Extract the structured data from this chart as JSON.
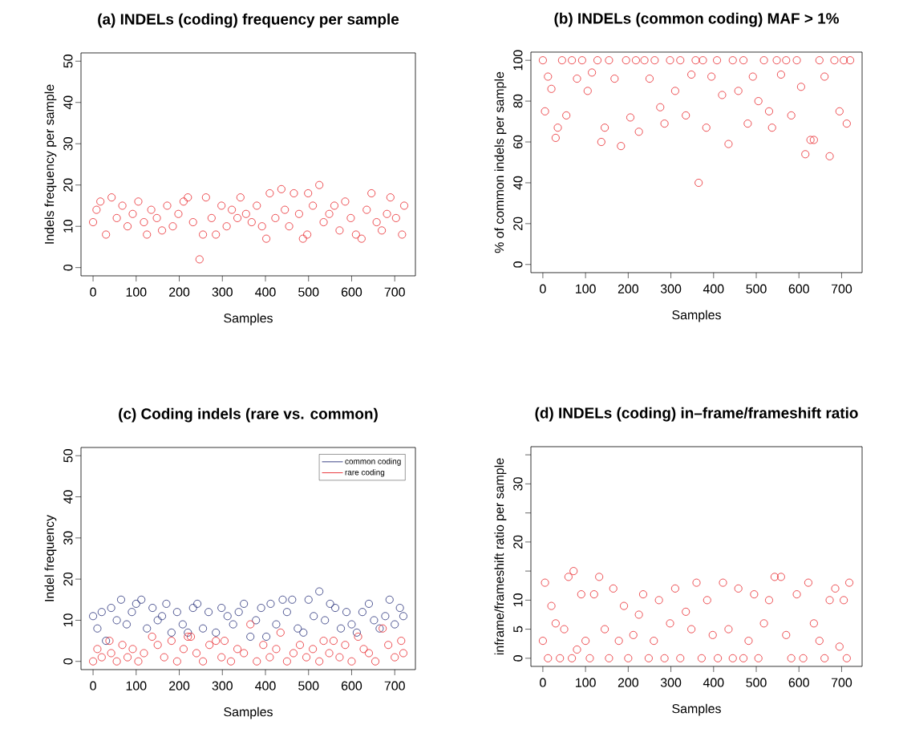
{
  "chart_data": [
    {
      "type": "scatter",
      "title": "(a) INDELs (coding) frequency per sample",
      "xlabel": "Samples",
      "ylabel": "Indels frequency per sample",
      "xlim": [
        -28,
        748
      ],
      "ylim": [
        -2,
        52
      ],
      "xticks": [
        0,
        100,
        200,
        300,
        400,
        500,
        600,
        700
      ],
      "yticks": [
        0,
        10,
        20,
        30,
        40,
        50
      ],
      "marker": "circle",
      "series": [
        {
          "color": "#e8262b",
          "x": [
            0,
            8,
            17,
            30,
            43,
            55,
            68,
            80,
            92,
            105,
            118,
            125,
            135,
            148,
            160,
            172,
            185,
            198,
            210,
            220,
            232,
            247,
            255,
            262,
            275,
            285,
            298,
            310,
            322,
            335,
            342,
            355,
            368,
            380,
            392,
            402,
            410,
            423,
            437,
            445,
            455,
            466,
            478,
            487,
            497,
            499,
            510,
            525,
            535,
            548,
            560,
            572,
            585,
            598,
            610,
            623,
            635,
            646,
            658,
            670,
            682,
            690,
            703,
            717,
            722
          ],
          "values": [
            11,
            14,
            16,
            8,
            17,
            12,
            15,
            10,
            13,
            16,
            11,
            8,
            14,
            12,
            9,
            15,
            10,
            13,
            16,
            17,
            11,
            2,
            8,
            17,
            12,
            8,
            15,
            10,
            14,
            12,
            17,
            13,
            11,
            15,
            10,
            7,
            18,
            12,
            19,
            14,
            10,
            18,
            13,
            7,
            8,
            18,
            15,
            20,
            11,
            13,
            15,
            9,
            16,
            12,
            8,
            7,
            14,
            18,
            11,
            9,
            13,
            17,
            12,
            8,
            15
          ]
        }
      ]
    },
    {
      "type": "scatter",
      "title": "(b) INDELs (common coding) MAF > 1%",
      "xlabel": "Samples",
      "ylabel": "% of common indels per sample",
      "xlim": [
        -28,
        748
      ],
      "ylim": [
        -4,
        104
      ],
      "xticks": [
        0,
        100,
        200,
        300,
        400,
        500,
        600,
        700
      ],
      "yticks": [
        0,
        20,
        40,
        60,
        80,
        100
      ],
      "marker": "circle",
      "series": [
        {
          "color": "#e8262b",
          "x": [
            0,
            5,
            12,
            20,
            30,
            35,
            45,
            55,
            68,
            80,
            92,
            105,
            115,
            128,
            137,
            145,
            155,
            168,
            183,
            195,
            205,
            218,
            225,
            238,
            250,
            262,
            275,
            285,
            298,
            310,
            322,
            335,
            348,
            358,
            365,
            375,
            383,
            395,
            408,
            420,
            435,
            445,
            458,
            470,
            480,
            492,
            505,
            518,
            530,
            537,
            548,
            558,
            570,
            582,
            595,
            605,
            615,
            627,
            635,
            648,
            660,
            672,
            683,
            695,
            705,
            712,
            720
          ],
          "values": [
            100,
            75,
            92,
            86,
            62,
            67,
            100,
            73,
            100,
            91,
            100,
            85,
            94,
            100,
            60,
            67,
            100,
            91,
            58,
            100,
            72,
            100,
            65,
            100,
            91,
            100,
            77,
            69,
            100,
            85,
            100,
            73,
            93,
            100,
            40,
            100,
            67,
            92,
            100,
            83,
            59,
            100,
            85,
            100,
            69,
            92,
            80,
            100,
            75,
            67,
            100,
            93,
            100,
            73,
            100,
            87,
            54,
            61,
            61,
            100,
            92,
            53,
            100,
            75,
            100,
            69,
            100
          ]
        }
      ]
    },
    {
      "type": "scatter",
      "title": "(c) Coding indels (rare vs. common)",
      "xlabel": "Samples",
      "ylabel": "Indel frequency",
      "xlim": [
        -28,
        748
      ],
      "ylim": [
        -2,
        52
      ],
      "xticks": [
        0,
        100,
        200,
        300,
        400,
        500,
        600,
        700
      ],
      "yticks": [
        0,
        10,
        20,
        30,
        40,
        50
      ],
      "marker": "circle",
      "legend": "top right",
      "series": [
        {
          "name": "common coding",
          "color": "#262e79",
          "x": [
            0,
            10,
            20,
            30,
            42,
            55,
            65,
            78,
            90,
            100,
            112,
            125,
            138,
            150,
            160,
            170,
            182,
            195,
            208,
            220,
            232,
            242,
            255,
            268,
            285,
            298,
            312,
            325,
            338,
            350,
            365,
            378,
            390,
            402,
            412,
            425,
            440,
            450,
            462,
            475,
            488,
            500,
            512,
            525,
            538,
            550,
            562,
            575,
            588,
            600,
            612,
            625,
            640,
            652,
            665,
            678,
            688,
            700,
            712,
            720
          ],
          "values": [
            11,
            8,
            12,
            5,
            13,
            10,
            15,
            9,
            12,
            14,
            15,
            8,
            13,
            10,
            11,
            14,
            7,
            12,
            9,
            7,
            13,
            14,
            8,
            12,
            7,
            13,
            11,
            9,
            12,
            14,
            6,
            10,
            13,
            6,
            14,
            9,
            15,
            12,
            15,
            8,
            7,
            15,
            11,
            17,
            10,
            14,
            13,
            8,
            12,
            9,
            7,
            12,
            14,
            10,
            8,
            11,
            15,
            9,
            13,
            11
          ]
        },
        {
          "name": "rare  coding",
          "color": "#e8262b",
          "x": [
            0,
            10,
            20,
            38,
            42,
            55,
            68,
            80,
            92,
            105,
            118,
            137,
            150,
            165,
            182,
            195,
            210,
            220,
            227,
            240,
            255,
            270,
            285,
            298,
            305,
            320,
            335,
            350,
            365,
            380,
            395,
            410,
            425,
            435,
            450,
            465,
            480,
            495,
            510,
            525,
            535,
            548,
            558,
            572,
            585,
            600,
            615,
            628,
            640,
            655,
            672,
            685,
            700,
            715,
            720
          ],
          "values": [
            0,
            3,
            1,
            5,
            2,
            0,
            4,
            1,
            3,
            0,
            2,
            6,
            4,
            1,
            5,
            0,
            3,
            6,
            6,
            2,
            0,
            4,
            5,
            1,
            5,
            0,
            3,
            2,
            9,
            0,
            4,
            1,
            3,
            7,
            0,
            2,
            4,
            1,
            3,
            0,
            5,
            2,
            5,
            1,
            4,
            0,
            6,
            3,
            2,
            0,
            8,
            4,
            1,
            5,
            2
          ]
        }
      ]
    },
    {
      "type": "scatter",
      "title": "(d) INDELs (coding) in–frame/frameshift ratio",
      "xlabel": "Samples",
      "ylabel": "inframe/frameshift ratio per sample",
      "xlim": [
        -28,
        748
      ],
      "ylim": [
        -1.4,
        36.4
      ],
      "xticks": [
        0,
        100,
        200,
        300,
        400,
        500,
        600,
        700
      ],
      "yticks": [
        0,
        5,
        10,
        {
          "value": 15,
          "label": null
        },
        20,
        {
          "value": 25,
          "label": null
        },
        30,
        {
          "value": 35,
          "label": null
        }
      ],
      "marker": "circle",
      "series": [
        {
          "color": "#e8262b",
          "x": [
            0,
            5,
            12,
            20,
            30,
            40,
            50,
            60,
            68,
            72,
            80,
            90,
            100,
            110,
            120,
            132,
            145,
            155,
            165,
            178,
            190,
            200,
            212,
            225,
            235,
            248,
            260,
            272,
            285,
            298,
            310,
            322,
            335,
            348,
            360,
            372,
            385,
            398,
            410,
            422,
            435,
            445,
            458,
            470,
            482,
            495,
            505,
            518,
            530,
            543,
            558,
            570,
            582,
            595,
            610,
            622,
            635,
            648,
            660,
            672,
            685,
            695,
            705,
            712,
            718
          ],
          "values": [
            3,
            13,
            0,
            9,
            6,
            0,
            5,
            14,
            0,
            15,
            1.5,
            11,
            3,
            0,
            11,
            14,
            5,
            0,
            12,
            3,
            9,
            0,
            4,
            7.5,
            11,
            0,
            3,
            10,
            0,
            6,
            12,
            0,
            8,
            5,
            13,
            0,
            10,
            4,
            0,
            13,
            5,
            0,
            12,
            0,
            3,
            11,
            0,
            6,
            10,
            14,
            14,
            4,
            0,
            11,
            0,
            13,
            6,
            3,
            0,
            10,
            12,
            2,
            10,
            0,
            13
          ]
        }
      ]
    }
  ]
}
